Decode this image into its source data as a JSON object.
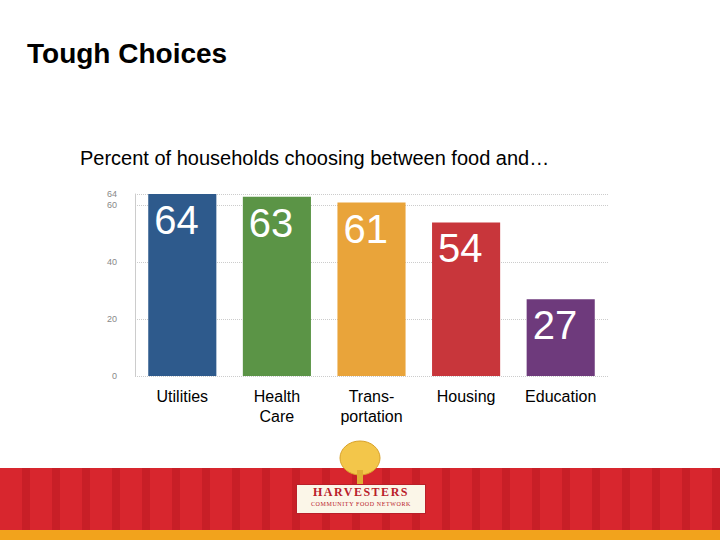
{
  "chart_data": {
    "type": "bar",
    "title": "Tough Choices",
    "subtitle": "Percent of households choosing between food and…",
    "categories": [
      "Utilities",
      "Health\nCare",
      "Trans-\nportation",
      "Housing",
      "Education"
    ],
    "values": [
      64,
      63,
      61,
      54,
      27
    ],
    "colors": [
      "#2e5a8c",
      "#5b9446",
      "#e9a43a",
      "#c8363b",
      "#6e3a7c"
    ],
    "ylim": [
      0,
      64
    ],
    "yticks": [
      0,
      20,
      40,
      60
    ],
    "grid": true,
    "data_labels": true
  },
  "footer": {
    "logo": "HARVESTERS",
    "tagline": "COMMUNITY FOOD NETWORK"
  }
}
